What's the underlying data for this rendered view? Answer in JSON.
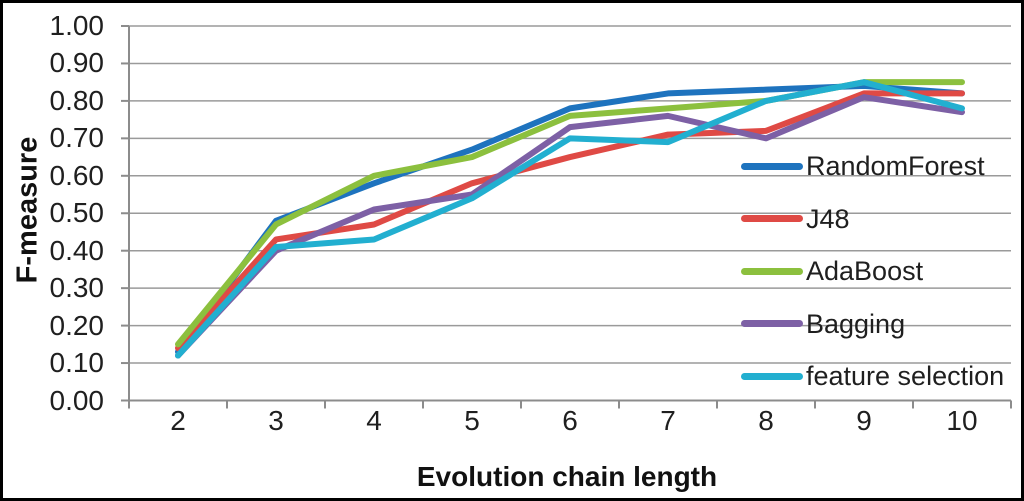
{
  "chart_data": {
    "type": "line",
    "title": "",
    "xlabel": "Evolution chain length",
    "ylabel": "F-measure",
    "x": [
      2,
      3,
      4,
      5,
      6,
      7,
      8,
      9,
      10
    ],
    "x_tick_labels": [
      "2",
      "3",
      "4",
      "5",
      "6",
      "7",
      "8",
      "9",
      "10"
    ],
    "y_ticks": [
      0.0,
      0.1,
      0.2,
      0.3,
      0.4,
      0.5,
      0.6,
      0.7,
      0.8,
      0.9,
      1.0
    ],
    "y_tick_labels": [
      "0.00",
      "0.10",
      "0.20",
      "0.30",
      "0.40",
      "0.50",
      "0.60",
      "0.70",
      "0.80",
      "0.90",
      "1.00"
    ],
    "ylim": [
      0,
      1
    ],
    "grid": "horizontal",
    "legend_position": "inside-right",
    "series": [
      {
        "name": "RandomForest",
        "color": "#1E73BE",
        "values": [
          0.13,
          0.48,
          0.58,
          0.67,
          0.78,
          0.82,
          0.83,
          0.84,
          0.82
        ]
      },
      {
        "name": "J48",
        "color": "#DF4A45",
        "values": [
          0.14,
          0.43,
          0.47,
          0.58,
          0.65,
          0.71,
          0.72,
          0.82,
          0.82
        ]
      },
      {
        "name": "AdaBoost",
        "color": "#8CC03E",
        "values": [
          0.15,
          0.47,
          0.6,
          0.65,
          0.76,
          0.78,
          0.8,
          0.85,
          0.85
        ]
      },
      {
        "name": "Bagging",
        "color": "#7D60A5",
        "values": [
          0.12,
          0.4,
          0.51,
          0.55,
          0.73,
          0.76,
          0.7,
          0.81,
          0.77
        ]
      },
      {
        "name": "feature selection",
        "color": "#22AFD0",
        "values": [
          0.12,
          0.41,
          0.43,
          0.54,
          0.7,
          0.69,
          0.8,
          0.85,
          0.78
        ]
      }
    ]
  },
  "colors": {
    "background": "#FFFFFF",
    "frame_border": "#000000",
    "gridline": "#9A9A9A",
    "axis": "#8C8C8C",
    "text": "#1F1F1F"
  }
}
